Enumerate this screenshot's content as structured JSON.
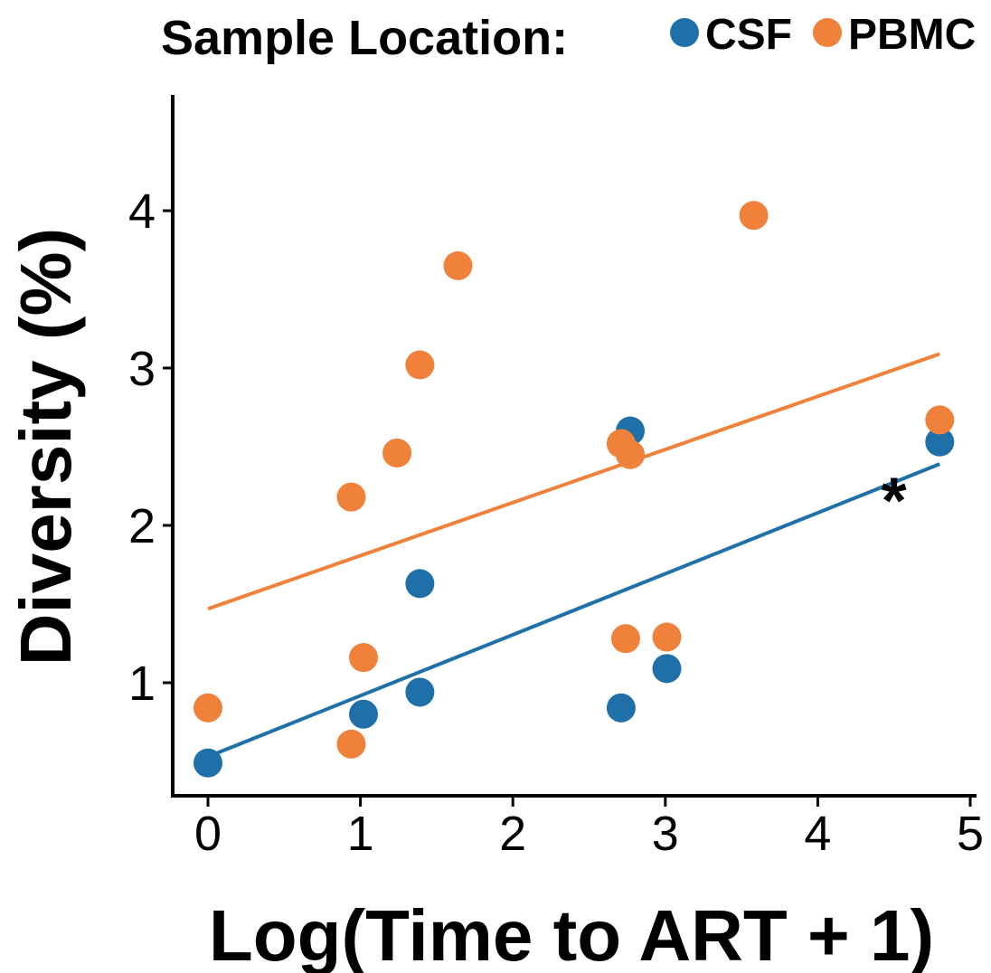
{
  "chart_data": {
    "type": "scatter",
    "legend": {
      "title": "Sample Location:",
      "placement": "top"
    },
    "xlabel": "Log(Time to ART + 1)",
    "ylabel": "Diversity (%)",
    "xlim": [
      -0.25,
      5.05
    ],
    "ylim": [
      0.32,
      4.72
    ],
    "xticks": [
      0,
      1,
      2,
      3,
      4,
      5
    ],
    "yticks": [
      1,
      2,
      3,
      4
    ],
    "xtick_labels": [
      "0",
      "1",
      "2",
      "3",
      "4",
      "5"
    ],
    "ytick_labels": [
      "1",
      "2",
      "3",
      "4"
    ],
    "grid": false,
    "series": [
      {
        "name": "CSF",
        "color": "#1f6fa8",
        "points": [
          {
            "x": 0.0,
            "y": 0.49
          },
          {
            "x": 1.02,
            "y": 0.8
          },
          {
            "x": 1.39,
            "y": 0.94
          },
          {
            "x": 1.39,
            "y": 1.63
          },
          {
            "x": 2.71,
            "y": 0.84
          },
          {
            "x": 2.77,
            "y": 2.6
          },
          {
            "x": 3.01,
            "y": 1.09
          },
          {
            "x": 4.8,
            "y": 2.53
          }
        ],
        "fit": {
          "x": [
            0.0,
            4.8
          ],
          "y": [
            0.53,
            2.39
          ]
        }
      },
      {
        "name": "PBMC",
        "color": "#f0813a",
        "points": [
          {
            "x": 0.0,
            "y": 0.84
          },
          {
            "x": 0.94,
            "y": 2.18
          },
          {
            "x": 0.94,
            "y": 0.61
          },
          {
            "x": 1.02,
            "y": 1.16
          },
          {
            "x": 1.24,
            "y": 2.46
          },
          {
            "x": 1.39,
            "y": 3.02
          },
          {
            "x": 1.64,
            "y": 3.65
          },
          {
            "x": 2.71,
            "y": 2.52
          },
          {
            "x": 2.77,
            "y": 2.45
          },
          {
            "x": 2.74,
            "y": 1.28
          },
          {
            "x": 3.01,
            "y": 1.29
          },
          {
            "x": 3.58,
            "y": 3.97
          },
          {
            "x": 4.8,
            "y": 2.67
          }
        ],
        "fit": {
          "x": [
            0.0,
            4.8
          ],
          "y": [
            1.47,
            3.09
          ]
        }
      }
    ],
    "annotations": [
      {
        "text": "*",
        "x": 4.5,
        "y": 2.28
      }
    ]
  }
}
